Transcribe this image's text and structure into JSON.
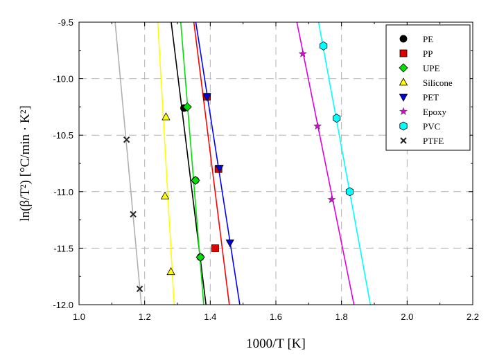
{
  "chart_data": {
    "type": "scatter",
    "xlabel": "1000/T [K]",
    "ylabel": "ln(β/T²) [°C/min · K²]",
    "xlim": [
      1.0,
      2.2
    ],
    "ylim": [
      -12.0,
      -9.5
    ],
    "x_ticks": [
      1.0,
      1.2,
      1.4,
      1.6,
      1.8,
      2.0,
      2.2
    ],
    "x_tick_labels": [
      "1.0",
      "1.2",
      "1.4",
      "1.6",
      "1.8",
      "2.0",
      "2.2"
    ],
    "y_ticks": [
      -12.0,
      -11.5,
      -11.0,
      -10.5,
      -10.0,
      -9.5
    ],
    "y_tick_labels": [
      "-12.0",
      "-11.5",
      "-11.0",
      "-10.5",
      "-10.0",
      "-9.5"
    ],
    "grid": true,
    "legend_position": "top-right",
    "series": [
      {
        "name": "PE",
        "marker": "circle",
        "color": "#000000",
        "line_color": "#000000",
        "points": [
          [
            1.32,
            -10.26
          ],
          [
            1.355,
            -10.9
          ],
          [
            1.37,
            -11.58
          ]
        ],
        "fit": [
          [
            1.281,
            -9.5
          ],
          [
            1.387,
            -12.0
          ]
        ]
      },
      {
        "name": "PP",
        "marker": "square",
        "color": "#e00000",
        "line_color": "#ff0000",
        "points": [
          [
            1.39,
            -10.16
          ],
          [
            1.425,
            -10.8
          ],
          [
            1.415,
            -11.5
          ]
        ],
        "fit": [
          [
            1.35,
            -9.5
          ],
          [
            1.458,
            -12.0
          ]
        ]
      },
      {
        "name": "UPE",
        "marker": "diamond",
        "color": "#00e000",
        "line_color": "#00e000",
        "points": [
          [
            1.33,
            -10.25
          ],
          [
            1.355,
            -10.9
          ],
          [
            1.37,
            -11.58
          ]
        ],
        "fit": [
          [
            1.31,
            -9.5
          ],
          [
            1.38,
            -12.0
          ]
        ]
      },
      {
        "name": "Silicone",
        "marker": "triangle-up",
        "color": "#ffff00",
        "line_color": "#ffff00",
        "points": [
          [
            1.265,
            -10.34
          ],
          [
            1.262,
            -11.04
          ],
          [
            1.28,
            -11.71
          ]
        ],
        "fit": [
          [
            1.24,
            -9.5
          ],
          [
            1.29,
            -12.0
          ]
        ]
      },
      {
        "name": "PET",
        "marker": "triangle-down",
        "color": "#0000e0",
        "line_color": "#0000ff",
        "points": [
          [
            1.39,
            -10.16
          ],
          [
            1.428,
            -10.79
          ],
          [
            1.46,
            -11.45
          ]
        ],
        "fit": [
          [
            1.356,
            -9.5
          ],
          [
            1.49,
            -12.0
          ]
        ]
      },
      {
        "name": "Epoxy",
        "marker": "star",
        "color": "#e000e0",
        "line_color": "#e000e0",
        "points": [
          [
            1.682,
            -9.78
          ],
          [
            1.727,
            -10.42
          ],
          [
            1.77,
            -11.07
          ]
        ],
        "fit": [
          [
            1.664,
            -9.5
          ],
          [
            1.838,
            -12.0
          ]
        ]
      },
      {
        "name": "PVC",
        "marker": "hexagon",
        "color": "#00ffff",
        "line_color": "#00ffff",
        "points": [
          [
            1.745,
            -9.71
          ],
          [
            1.785,
            -10.35
          ],
          [
            1.825,
            -11.0
          ]
        ],
        "fit": [
          [
            1.73,
            -9.5
          ],
          [
            1.888,
            -12.0
          ]
        ]
      },
      {
        "name": "PTFE",
        "marker": "x",
        "color": "#222222",
        "line_color": "#b0b0b0",
        "points": [
          [
            1.145,
            -10.54
          ],
          [
            1.165,
            -11.2
          ],
          [
            1.185,
            -11.86
          ]
        ],
        "fit": [
          [
            1.11,
            -9.5
          ],
          [
            1.19,
            -12.0
          ]
        ]
      }
    ]
  }
}
